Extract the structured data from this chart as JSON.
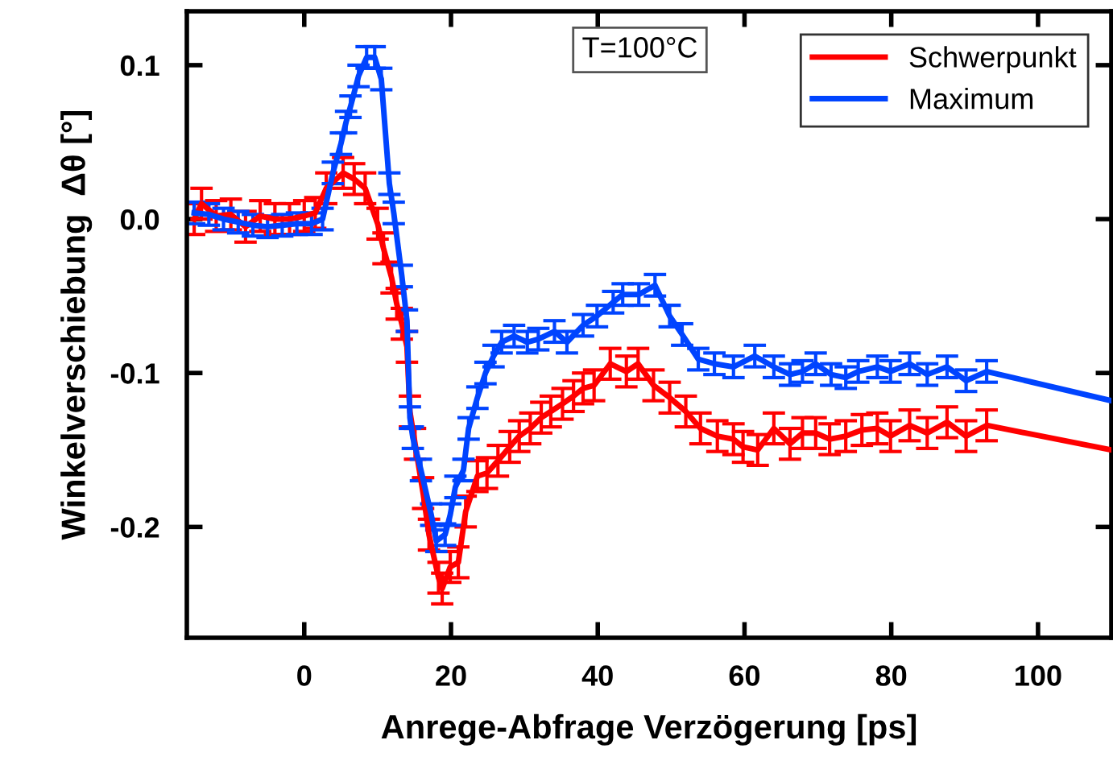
{
  "chart_data": {
    "type": "line",
    "xlabel": "Anrege-Abfrage Verzögerung [ps]",
    "ylabel": "Winkelverschiebung  Δθ [°]",
    "annotations": [
      "T=100°C"
    ],
    "xlim": [
      -16,
      110
    ],
    "xticks": [
      0,
      20,
      40,
      60,
      80,
      100
    ],
    "ylim": [
      -0.272,
      0.135
    ],
    "yticks": [
      0.1,
      {
        "value": 0.0,
        "label": "0.0"
      },
      {
        "value": -0.1,
        "label": "-0.1"
      },
      {
        "value": -0.2,
        "label": "-0.2"
      }
    ],
    "grid": false,
    "legend": "top right",
    "marker": "none",
    "line_style": "solid",
    "series": [
      {
        "name": "Schwerpunkt",
        "color": "#ff0000",
        "x": [
          -15,
          -14,
          -12,
          -10,
          -8,
          -6,
          -4,
          -2,
          0,
          1.5,
          3,
          5.3,
          6.8,
          8.3,
          10,
          10.8,
          11.9,
          12.6,
          13.3,
          14,
          14.4,
          15.1,
          16.2,
          17,
          18.3,
          18.8,
          19.9,
          21,
          22,
          23.6,
          24.9,
          26.4,
          28,
          29.3,
          30.8,
          32.3,
          33.6,
          35.2,
          36.7,
          38,
          39.5,
          41.7,
          43.9,
          45.5,
          47.6,
          49.8,
          52,
          54,
          56.3,
          58.5,
          59.8,
          61.8,
          64,
          66.2,
          67.9,
          69.7,
          71.6,
          73.8,
          76,
          78.1,
          79.9,
          82.5,
          84.9,
          87.6,
          90.2,
          93,
          110
        ],
        "values": [
          0.0,
          0.01,
          0.002,
          0.003,
          -0.005,
          0.002,
          0.0,
          0.0,
          0.002,
          0.004,
          0.02,
          0.03,
          0.026,
          0.02,
          -0.003,
          -0.019,
          -0.038,
          -0.055,
          -0.068,
          -0.083,
          -0.125,
          -0.146,
          -0.178,
          -0.205,
          -0.233,
          -0.24,
          -0.226,
          -0.223,
          -0.19,
          -0.167,
          -0.165,
          -0.157,
          -0.148,
          -0.141,
          -0.136,
          -0.129,
          -0.125,
          -0.12,
          -0.115,
          -0.11,
          -0.108,
          -0.094,
          -0.099,
          -0.094,
          -0.108,
          -0.116,
          -0.125,
          -0.136,
          -0.141,
          -0.143,
          -0.148,
          -0.15,
          -0.136,
          -0.146,
          -0.139,
          -0.139,
          -0.143,
          -0.141,
          -0.137,
          -0.136,
          -0.141,
          -0.134,
          -0.139,
          -0.132,
          -0.141,
          -0.134,
          -0.15
        ],
        "errors": [
          0.01,
          0.01,
          0.01,
          0.01,
          0.01,
          0.01,
          0.01,
          0.01,
          0.01,
          0.01,
          0.01,
          0.01,
          0.01,
          0.01,
          0.01,
          0.01,
          0.01,
          0.01,
          0.01,
          0.01,
          0.01,
          0.01,
          0.01,
          0.01,
          0.01,
          0.01,
          0.01,
          0.01,
          0.01,
          0.01,
          0.01,
          0.01,
          0.01,
          0.01,
          0.01,
          0.01,
          0.01,
          0.01,
          0.01,
          0.01,
          0.01,
          0.01,
          0.01,
          0.01,
          0.01,
          0.01,
          0.01,
          0.01,
          0.01,
          0.01,
          0.01,
          0.01,
          0.01,
          0.01,
          0.01,
          0.01,
          0.01,
          0.01,
          0.01,
          0.01,
          0.01,
          0.01,
          0.01,
          0.01,
          0.01,
          0.01,
          null
        ]
      },
      {
        "name": "Maximum",
        "color": "#0044ff",
        "x": [
          -15,
          -13,
          -11,
          -9,
          -7,
          -5,
          -3,
          -1,
          1,
          2.5,
          3.9,
          5,
          5.7,
          6.3,
          7.4,
          8.5,
          9.6,
          10.5,
          11.6,
          12.2,
          13.3,
          14,
          14.4,
          14.8,
          15.9,
          17.3,
          18,
          19.2,
          19.9,
          20.6,
          21.7,
          22.4,
          23.6,
          24.7,
          25.8,
          26.9,
          28.6,
          30.4,
          31.9,
          34.1,
          35.8,
          38,
          39.9,
          42.1,
          43.4,
          45.6,
          47.8,
          49.8,
          51.5,
          53.7,
          55.9,
          58.5,
          61.4,
          64,
          66.2,
          67.9,
          69.7,
          71.8,
          73.8,
          75.5,
          78.1,
          79.9,
          82.5,
          84.9,
          87.6,
          90.2,
          93,
          110
        ],
        "values": [
          0.004,
          0.003,
          0.0,
          -0.002,
          -0.004,
          -0.005,
          -0.004,
          -0.003,
          -0.003,
          0.0,
          0.03,
          0.049,
          0.063,
          0.073,
          0.093,
          0.105,
          0.105,
          0.091,
          0.023,
          0.004,
          -0.037,
          -0.066,
          -0.129,
          -0.142,
          -0.163,
          -0.192,
          -0.209,
          -0.205,
          -0.192,
          -0.174,
          -0.163,
          -0.136,
          -0.116,
          -0.1,
          -0.089,
          -0.08,
          -0.076,
          -0.08,
          -0.078,
          -0.073,
          -0.08,
          -0.069,
          -0.063,
          -0.054,
          -0.049,
          -0.049,
          -0.043,
          -0.063,
          -0.075,
          -0.091,
          -0.094,
          -0.096,
          -0.089,
          -0.096,
          -0.101,
          -0.099,
          -0.094,
          -0.101,
          -0.103,
          -0.099,
          -0.096,
          -0.099,
          -0.094,
          -0.101,
          -0.096,
          -0.105,
          -0.099,
          -0.118
        ],
        "errors": [
          0.007,
          0.007,
          0.007,
          0.007,
          0.007,
          0.007,
          0.007,
          0.007,
          0.007,
          0.007,
          0.007,
          0.007,
          0.007,
          0.007,
          0.007,
          0.007,
          0.007,
          0.007,
          0.007,
          0.007,
          0.007,
          0.007,
          0.007,
          0.007,
          0.007,
          0.007,
          0.007,
          0.007,
          0.007,
          0.007,
          0.007,
          0.007,
          0.007,
          0.007,
          0.007,
          0.007,
          0.007,
          0.007,
          0.007,
          0.007,
          0.007,
          0.007,
          0.007,
          0.007,
          0.007,
          0.007,
          0.007,
          0.007,
          0.007,
          0.007,
          0.007,
          0.007,
          0.007,
          0.007,
          0.007,
          0.007,
          0.007,
          0.007,
          0.007,
          0.007,
          0.007,
          0.007,
          0.007,
          0.007,
          0.007,
          0.007,
          0.007,
          null
        ]
      }
    ]
  }
}
